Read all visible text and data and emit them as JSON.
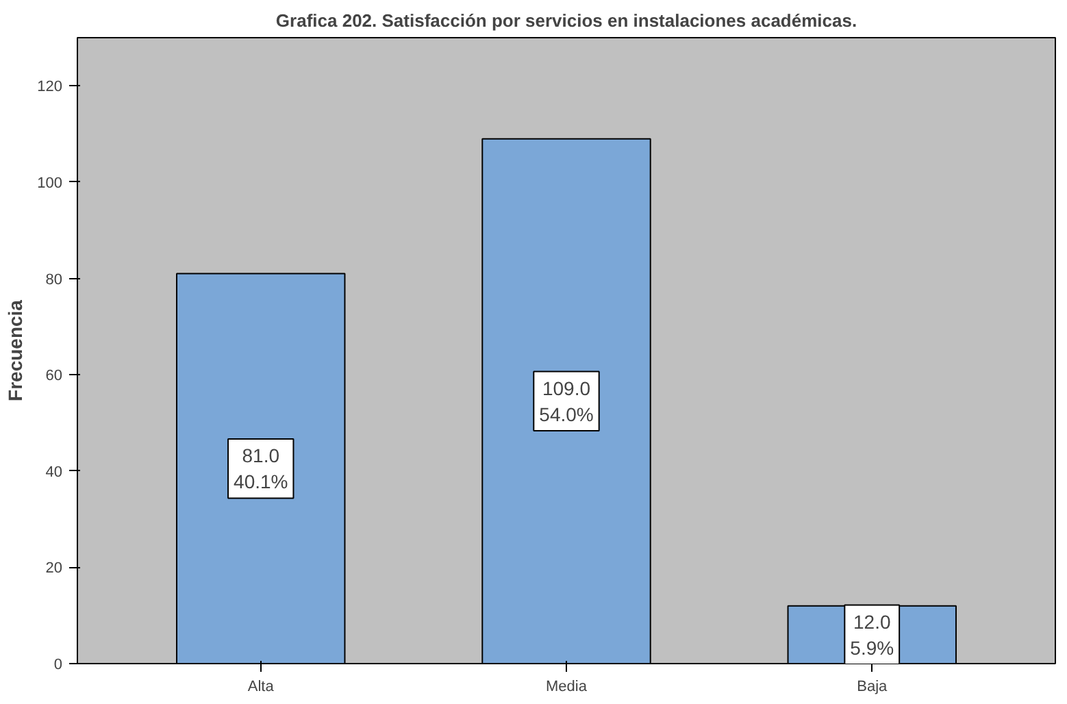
{
  "chart_data": {
    "type": "bar",
    "title": "Grafica 202. Satisfacción por servicios en instalaciones académicas.",
    "ylabel": "Frecuencia",
    "categories": [
      "Alta",
      "Media",
      "Baja"
    ],
    "values": [
      81,
      109,
      12
    ],
    "color": "#7ba7d7",
    "value_labels": [
      "81.0\n40.1%",
      "109.0\n54.0%",
      "12.0\n5.9%"
    ],
    "ylim": [
      0,
      130
    ],
    "yticks": [
      0,
      20,
      40,
      60,
      80,
      100,
      120
    ],
    "grid": false
  }
}
